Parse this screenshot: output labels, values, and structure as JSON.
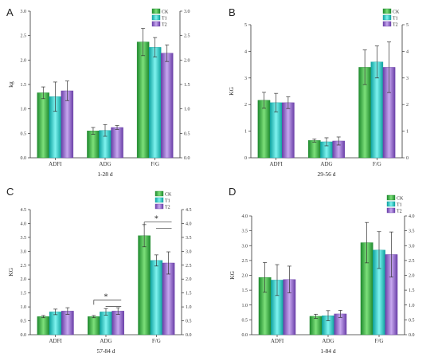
{
  "legend": [
    "CK",
    "T1",
    "T2"
  ],
  "colors": {
    "CK": [
      "#1f8a2e",
      "#7de07a",
      "#1f8a2e"
    ],
    "T1": [
      "#0fa3a0",
      "#7ff3ef",
      "#0fa3a0"
    ],
    "T2": [
      "#6a3fa8",
      "#c7a8ef",
      "#6a3fa8"
    ]
  },
  "chart_data": [
    {
      "panel": "A",
      "type": "bar",
      "categories": [
        "ADFI",
        "ADG",
        "F/G"
      ],
      "xlabel": "1-28 d",
      "ylabel": "kg",
      "ylim": [
        0,
        3.0
      ],
      "ticks_left": [
        "0.0",
        "0.5",
        "1.0",
        "1.5",
        "2.0",
        "2.5",
        "3.0"
      ],
      "ticks_right": [
        "0.0",
        "0.5",
        "1.0",
        "1.5",
        "2.0",
        "2.5",
        "3.0"
      ],
      "series": [
        {
          "name": "CK",
          "values": [
            1.33,
            0.55,
            2.37
          ],
          "errors": [
            0.12,
            0.07,
            0.28
          ]
        },
        {
          "name": "T1",
          "values": [
            1.25,
            0.56,
            2.26
          ],
          "errors": [
            0.3,
            0.12,
            0.2
          ]
        },
        {
          "name": "T2",
          "values": [
            1.37,
            0.62,
            2.14
          ],
          "errors": [
            0.2,
            0.04,
            0.17
          ]
        }
      ],
      "significance": []
    },
    {
      "panel": "B",
      "type": "bar",
      "categories": [
        "ADFI",
        "ADG",
        "F/G"
      ],
      "xlabel": "29-56 d",
      "ylabel": "KG",
      "ylim": [
        0,
        5
      ],
      "ticks_left": [
        "0",
        "1",
        "2",
        "3",
        "4",
        "5"
      ],
      "ticks_right": [
        "0",
        "1",
        "2",
        "3",
        "4",
        "5"
      ],
      "series": [
        {
          "name": "CK",
          "values": [
            2.16,
            0.65,
            3.4
          ],
          "errors": [
            0.3,
            0.06,
            0.65
          ]
        },
        {
          "name": "T1",
          "values": [
            2.07,
            0.6,
            3.6
          ],
          "errors": [
            0.35,
            0.15,
            0.6
          ]
        },
        {
          "name": "T2",
          "values": [
            2.07,
            0.63,
            3.4
          ],
          "errors": [
            0.22,
            0.15,
            0.95
          ]
        }
      ],
      "significance": []
    },
    {
      "panel": "C",
      "type": "bar",
      "categories": [
        "ADFI",
        "ADG",
        "F/G"
      ],
      "xlabel": "57-84 d",
      "ylabel": "KG",
      "ylim": [
        0,
        4.5
      ],
      "ticks_left": [
        "0.0",
        "0.5",
        "1.0",
        "1.5",
        "2.0",
        "2.5",
        "3.0",
        "3.5",
        "4.0",
        "4.5"
      ],
      "ticks_right": [
        "0.0",
        "0.5",
        "1.0",
        "1.5",
        "2.0",
        "2.5",
        "3.0",
        "3.5",
        "4.0",
        "4.5"
      ],
      "series": [
        {
          "name": "CK",
          "values": [
            0.65,
            0.65,
            3.56
          ],
          "errors": [
            0.04,
            0.04,
            0.4
          ]
        },
        {
          "name": "T1",
          "values": [
            0.82,
            0.82,
            2.67
          ],
          "errors": [
            0.1,
            0.12,
            0.2
          ]
        },
        {
          "name": "T2",
          "values": [
            0.85,
            0.85,
            2.58
          ],
          "errors": [
            0.12,
            0.12,
            0.4
          ]
        }
      ],
      "significance": [
        {
          "category": 1,
          "label": "*",
          "from": 0,
          "to": 2,
          "level": 1.25
        },
        {
          "category": 2,
          "label": "*",
          "from": 0,
          "to": 2,
          "level": 4.05
        }
      ]
    },
    {
      "panel": "D",
      "type": "bar",
      "categories": [
        "ADFI",
        "ADG",
        "F/G"
      ],
      "xlabel": "1-84 d",
      "ylabel": "KG",
      "ylim": [
        0,
        4.0
      ],
      "ticks_left": [
        "0.0",
        "0.5",
        "1.0",
        "1.5",
        "2.0",
        "2.5",
        "3.0",
        "3.5",
        "4.0"
      ],
      "ticks_right": [
        "0.0",
        "0.5",
        "1.0",
        "1.5",
        "2.0",
        "2.5",
        "3.0",
        "3.5",
        "4.0"
      ],
      "series": [
        {
          "name": "CK",
          "values": [
            1.93,
            0.62,
            3.1
          ],
          "errors": [
            0.5,
            0.07,
            0.68
          ]
        },
        {
          "name": "T1",
          "values": [
            1.84,
            0.64,
            2.85
          ],
          "errors": [
            0.52,
            0.17,
            0.62
          ]
        },
        {
          "name": "T2",
          "values": [
            1.86,
            0.7,
            2.7
          ],
          "errors": [
            0.45,
            0.12,
            0.76
          ]
        }
      ],
      "significance": []
    }
  ]
}
